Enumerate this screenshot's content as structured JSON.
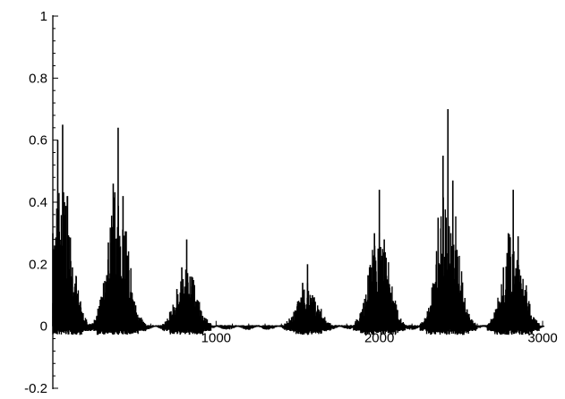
{
  "chart_data": {
    "type": "line",
    "title": "",
    "xlabel": "",
    "ylabel": "",
    "xlim": [
      0,
      3000
    ],
    "ylim": [
      -0.2,
      1
    ],
    "grid": false,
    "legend": "none",
    "color": "#000000",
    "x_ticks": [
      {
        "value": 1000,
        "label": "1000"
      },
      {
        "value": 2000,
        "label": "2000"
      },
      {
        "value": 3000,
        "label": "3000"
      }
    ],
    "y_ticks": [
      {
        "value": 1,
        "label": "1"
      },
      {
        "value": 0.8,
        "label": "0.8"
      },
      {
        "value": 0.6,
        "label": "0.6"
      },
      {
        "value": 0.4,
        "label": "0.4"
      },
      {
        "value": 0.2,
        "label": "0.2"
      },
      {
        "value": 0,
        "label": "0"
      },
      {
        "value": -0.2,
        "label": "-0.2"
      }
    ],
    "clusters": [
      {
        "center": 60,
        "peak": 0.65,
        "secondary": [
          0.6,
          0.42,
          0.3,
          0.19
        ]
      },
      {
        "center": 400,
        "peak": 0.64,
        "secondary": [
          0.46,
          0.42,
          0.27,
          0.16
        ]
      },
      {
        "center": 820,
        "peak": 0.28,
        "secondary": [
          0.19,
          0.16,
          0.12
        ]
      },
      {
        "center": 1560,
        "peak": 0.2,
        "secondary": [
          0.14,
          0.1,
          0.08
        ]
      },
      {
        "center": 2000,
        "peak": 0.44,
        "secondary": [
          0.3,
          0.28,
          0.19
        ]
      },
      {
        "center": 2420,
        "peak": 0.7,
        "secondary": [
          0.55,
          0.47,
          0.35
        ]
      },
      {
        "center": 2820,
        "peak": 0.44,
        "secondary": [
          0.3,
          0.29,
          0.19
        ]
      }
    ],
    "trough_min": -0.03
  }
}
